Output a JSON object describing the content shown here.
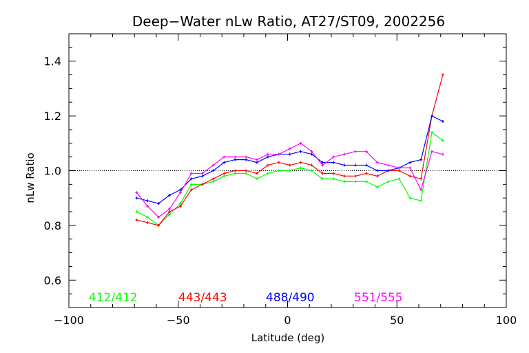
{
  "chart_data": {
    "type": "line",
    "title": "Deep−Water nLw Ratio, AT27/ST09, 2002256",
    "xlabel": "Latitude (deg)",
    "ylabel": "nLw Ratio",
    "xlim": [
      -100,
      100
    ],
    "ylim": [
      0.5,
      1.5
    ],
    "x_ticks": [
      -100,
      -50,
      0,
      50,
      100
    ],
    "x_tick_labels": [
      "−100",
      "−50",
      "0",
      "50",
      "100"
    ],
    "y_ticks": [
      0.6,
      0.8,
      1.0,
      1.2,
      1.4
    ],
    "y_tick_labels": [
      "0.6",
      "0.8",
      "1.0",
      "1.2",
      "1.4"
    ],
    "x_minor_step": 10,
    "y_minor_step": 0.05,
    "reference_line": {
      "y": 1.0,
      "style": "dotted"
    },
    "grid": false,
    "legend_placement": "bottom inside plot",
    "x": [
      -69,
      -66,
      -63,
      -60,
      -57,
      -54,
      -51,
      -48,
      -45,
      -42,
      -39,
      -36,
      -33,
      -30,
      -27,
      -24,
      -21,
      -18,
      -15,
      -12,
      -9,
      -6,
      -3,
      0,
      3,
      6,
      9,
      12,
      15,
      18,
      21,
      24,
      27,
      30,
      33,
      36,
      39,
      42,
      45,
      48,
      51,
      54,
      57,
      60,
      63,
      66,
      69,
      72
    ],
    "series": [
      {
        "name": "412/412",
        "color": "#00ff00",
        "x": [
          -69,
          -64,
          -59,
          -54,
          -49,
          -44,
          -39,
          -34,
          -29,
          -24,
          -19,
          -14,
          -9,
          -4,
          1,
          6,
          11,
          16,
          21,
          26,
          31,
          36,
          41,
          46,
          51,
          56,
          61,
          66,
          71
        ],
        "values": [
          0.85,
          0.83,
          0.8,
          0.84,
          0.88,
          0.95,
          0.95,
          0.96,
          0.98,
          0.99,
          0.99,
          0.97,
          0.99,
          1.0,
          1.0,
          1.01,
          1.0,
          0.97,
          0.97,
          0.96,
          0.96,
          0.96,
          0.94,
          0.96,
          0.97,
          0.9,
          0.89,
          1.14,
          1.11
        ]
      },
      {
        "name": "443/443",
        "color": "#ff0000",
        "x": [
          -69,
          -64,
          -59,
          -54,
          -49,
          -44,
          -39,
          -34,
          -29,
          -24,
          -19,
          -14,
          -9,
          -4,
          1,
          6,
          11,
          16,
          21,
          26,
          31,
          36,
          41,
          46,
          51,
          56,
          61,
          66,
          71
        ],
        "values": [
          0.82,
          0.81,
          0.8,
          0.85,
          0.87,
          0.93,
          0.95,
          0.97,
          0.99,
          1.0,
          1.0,
          0.99,
          1.02,
          1.03,
          1.02,
          1.03,
          1.02,
          0.99,
          0.99,
          0.98,
          0.98,
          0.99,
          0.98,
          1.0,
          1.0,
          0.98,
          0.97,
          1.2,
          1.35
        ]
      },
      {
        "name": "488/490",
        "color": "#0000ff",
        "x": [
          -69,
          -64,
          -59,
          -54,
          -49,
          -44,
          -39,
          -34,
          -29,
          -24,
          -19,
          -14,
          -9,
          -4,
          1,
          6,
          11,
          16,
          21,
          26,
          31,
          36,
          41,
          46,
          51,
          56,
          61,
          66,
          71
        ],
        "values": [
          0.9,
          0.89,
          0.88,
          0.91,
          0.93,
          0.97,
          0.98,
          1.0,
          1.03,
          1.04,
          1.04,
          1.03,
          1.05,
          1.06,
          1.06,
          1.07,
          1.06,
          1.03,
          1.03,
          1.02,
          1.02,
          1.02,
          1.0,
          1.0,
          1.01,
          1.03,
          1.04,
          1.2,
          1.18
        ]
      },
      {
        "name": "551/555",
        "color": "#ff00ff",
        "x": [
          -69,
          -64,
          -59,
          -54,
          -49,
          -44,
          -39,
          -34,
          -29,
          -24,
          -19,
          -14,
          -9,
          -4,
          1,
          6,
          11,
          16,
          21,
          26,
          31,
          36,
          41,
          46,
          51,
          56,
          61,
          66,
          71
        ],
        "values": [
          0.92,
          0.87,
          0.83,
          0.86,
          0.92,
          0.99,
          0.99,
          1.02,
          1.05,
          1.05,
          1.05,
          1.04,
          1.06,
          1.06,
          1.08,
          1.1,
          1.07,
          1.02,
          1.05,
          1.06,
          1.07,
          1.07,
          1.03,
          1.02,
          1.01,
          1.01,
          0.93,
          1.07,
          1.06
        ]
      }
    ]
  }
}
